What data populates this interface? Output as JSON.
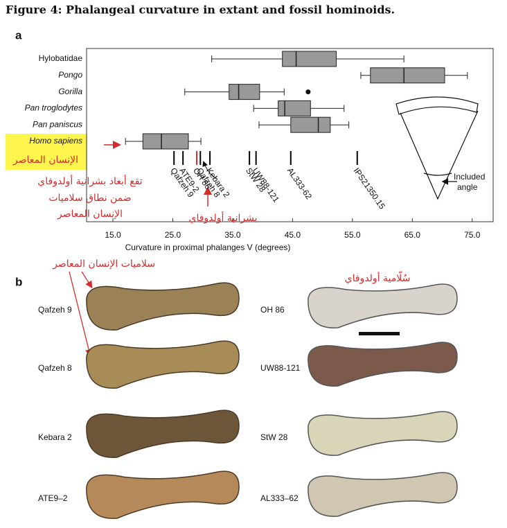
{
  "title": "Figure 4: Phalangeal curvature in extant and fossil hominoids.",
  "chart_data": {
    "type": "box",
    "panel_label": "a",
    "xlabel": "Curvature in proximal phalanges V (degrees)",
    "xlim": [
      10.6,
      78.5
    ],
    "xticks": [
      {
        "value": 15,
        "label": "15.0"
      },
      {
        "value": 25,
        "label": "25.0"
      },
      {
        "value": 35,
        "label": "35.0"
      },
      {
        "value": 45,
        "label": "45.0"
      },
      {
        "value": 55,
        "label": "55.0"
      },
      {
        "value": 65,
        "label": "65.0"
      },
      {
        "value": 75,
        "label": "75.0"
      }
    ],
    "box_color": "#999999",
    "series": [
      {
        "name": "Hylobatidae",
        "italic": false,
        "whisker_low": 31.5,
        "q1": 43.3,
        "median": 45.6,
        "q3": 52.3,
        "whisker_high": 63.6,
        "outliers": []
      },
      {
        "name": "Pongo",
        "italic": true,
        "whisker_low": 56.4,
        "q1": 58.0,
        "median": 63.6,
        "q3": 70.4,
        "whisker_high": 74.2,
        "outliers": []
      },
      {
        "name": "Gorilla",
        "italic": true,
        "whisker_low": 27.0,
        "q1": 34.4,
        "median": 36.0,
        "q3": 39.5,
        "whisker_high": 43.6,
        "outliers": [
          47.6
        ]
      },
      {
        "name": "Pan troglodytes",
        "italic": true,
        "whisker_low": 38.5,
        "q1": 42.6,
        "median": 43.7,
        "q3": 48.0,
        "whisker_high": 53.6,
        "outliers": []
      },
      {
        "name": "Pan paniscus",
        "italic": true,
        "whisker_low": 39.4,
        "q1": 44.7,
        "median": 49.3,
        "q3": 51.3,
        "whisker_high": 54.4,
        "outliers": []
      },
      {
        "name": "Homo sapiens",
        "italic": true,
        "whisker_low": 17.1,
        "q1": 20.0,
        "median": 23.1,
        "q3": 27.6,
        "whisker_high": 29.7,
        "outliers": []
      }
    ],
    "fossils": [
      {
        "name": "Qafzeh 9",
        "value": 25.2,
        "color": "#000000"
      },
      {
        "name": "ATE9-2",
        "value": 26.7,
        "color": "#000000"
      },
      {
        "name": "OH 86",
        "value": 29.0,
        "color": "#d42a2a"
      },
      {
        "name": "Qafzeh 8",
        "value": 29.6,
        "color": "#000000"
      },
      {
        "name": "Kebara 2",
        "value": 31.2,
        "color": "#000000"
      },
      {
        "name": "StW 28",
        "value": 37.8,
        "color": "#000000"
      },
      {
        "name": "UW88-121",
        "value": 38.9,
        "color": "#000000"
      },
      {
        "name": "AL333-62",
        "value": 44.7,
        "color": "#000000"
      },
      {
        "name": "IPS21350.15",
        "value": 55.8,
        "color": "#000000"
      }
    ],
    "diagram_label": [
      "Included",
      "angle"
    ],
    "annotations": {
      "group_label": "الإنسان المعاصر",
      "range_note": [
        "تقع أبعاد بشرانية أولدوفاي",
        "ضمن نطاق  سلاميات",
        "الإنسان المعاصر"
      ],
      "fossil_note": "بشرانية أولدوفاي"
    }
  },
  "panel_b": {
    "label": "b",
    "left_note": "سلاميات الإنسان المعاصر",
    "right_note": "سُلّامية أولدوفاي",
    "left": [
      "Qafzeh 9",
      "Qafzeh 8",
      "Kebara 2",
      "ATE9–2"
    ],
    "right": [
      "OH 86",
      "UW88-121",
      "StW 28",
      "AL333–62"
    ]
  }
}
